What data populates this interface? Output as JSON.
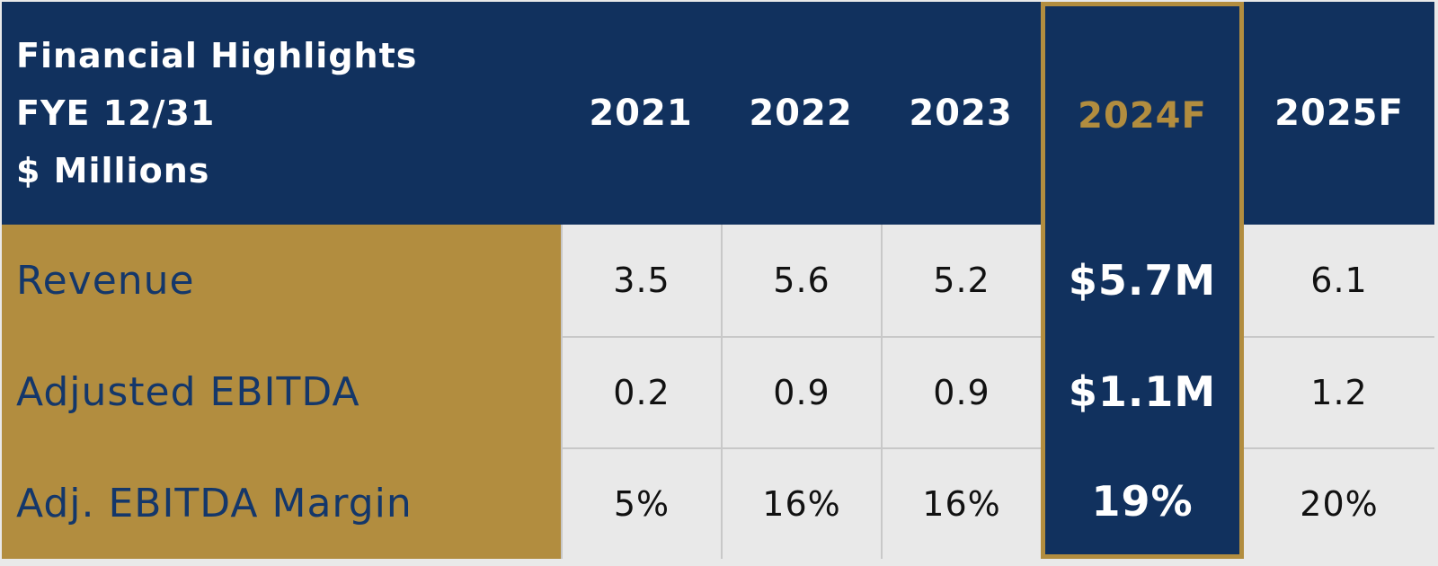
{
  "header": {
    "title_lines": [
      "Financial Highlights",
      "FYE 12/31",
      "$ Millions"
    ],
    "years": [
      "2021",
      "2022",
      "2023",
      "2024F",
      "2025F"
    ],
    "highlight_year": "2024F"
  },
  "rows": [
    {
      "label": "Revenue",
      "values": [
        "3.5",
        "5.6",
        "5.2",
        "$5.7M",
        "6.1"
      ]
    },
    {
      "label": "Adjusted EBITDA",
      "values": [
        "0.2",
        "0.9",
        "0.9",
        "$1.1M",
        "1.2"
      ]
    },
    {
      "label": "Adj. EBITDA Margin",
      "values": [
        "5%",
        "16%",
        "16%",
        "19%",
        "20%"
      ]
    }
  ],
  "colors": {
    "navy": "#11315e",
    "gold": "#b28d3f",
    "cell_bg": "#e9e9e9",
    "grid": "#c8c8c8"
  }
}
